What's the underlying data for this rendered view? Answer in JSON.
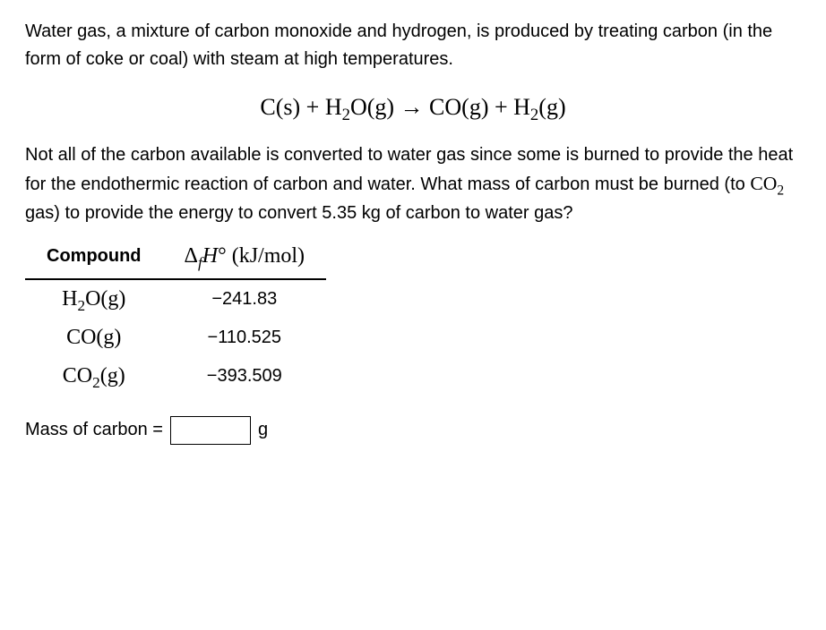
{
  "intro": "Water gas, a mixture of carbon monoxide and hydrogen, is produced by treating carbon (in the form of coke or coal) with steam at high temperatures.",
  "equation_html": "C(s) + H<span class=\"sub\">2</span>O(g) → CO(g) + H<span class=\"sub\">2</span>(g)",
  "question_part1": "Not all of the carbon available is converted to water gas since some is burned to provide the heat for the endothermic reaction of carbon and water. What mass of carbon must be burned (to ",
  "question_co2_html": "CO<span class=\"sub\">2</span>",
  "question_part2": " gas) to provide the energy to convert 5.35 kg of carbon to water gas?",
  "table": {
    "header_compound": "Compound",
    "header_enthalpy_html": "Δ<span class=\"italic-sub\">f</span><i>H</i>° (kJ/mol)",
    "rows": [
      {
        "compound_html": "H<span class=\"sub\">2</span>O(g)",
        "value": "−241.83"
      },
      {
        "compound_html": "CO(g)",
        "value": "−110.525"
      },
      {
        "compound_html": "CO<span class=\"sub\">2</span>(g)",
        "value": "−393.509"
      }
    ]
  },
  "answer": {
    "label": "Mass of carbon =",
    "value": "",
    "unit": "g"
  }
}
